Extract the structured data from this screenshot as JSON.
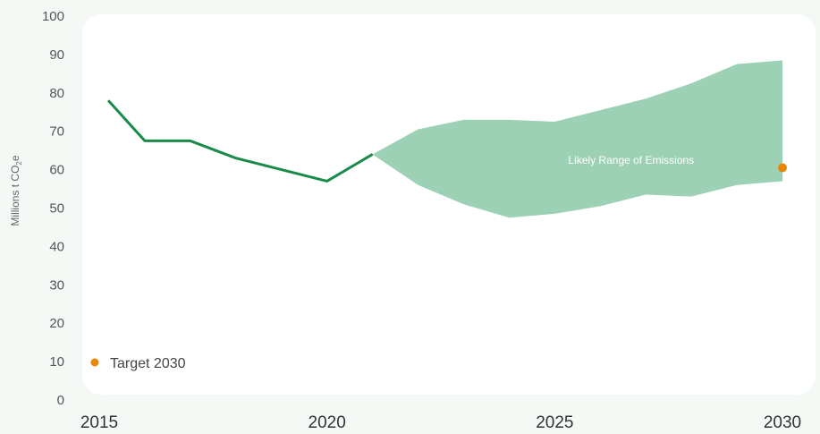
{
  "chart_data": {
    "type": "line",
    "ylabel": "Millions t CO",
    "ylabel_subscript": "2",
    "ylabel_suffix": "e",
    "ylim": [
      0,
      100
    ],
    "yticks": [
      0,
      10,
      20,
      30,
      40,
      50,
      60,
      70,
      80,
      90,
      100
    ],
    "xlim": [
      2015,
      2030
    ],
    "xticks": [
      2015,
      2020,
      2025,
      2030
    ],
    "grid": false,
    "series": [
      {
        "type": "line",
        "color": "#1a8a4a",
        "x": [
          2015.2,
          2016,
          2017,
          2018,
          2019,
          2020,
          2021
        ],
        "y": [
          78,
          67.5,
          67.5,
          63,
          60,
          57,
          64
        ]
      }
    ],
    "range_band": {
      "label": "Likely Range of Emissions",
      "color": "#9dd1b5",
      "x": [
        2021,
        2022,
        2023,
        2024,
        2025,
        2026,
        2027,
        2028,
        2029,
        2030
      ],
      "upper": [
        64,
        70.5,
        73,
        73,
        72.5,
        75.5,
        78.5,
        82.5,
        87.5,
        88.5
      ],
      "lower": [
        64,
        56,
        51,
        47.5,
        48.5,
        50.5,
        53.5,
        53,
        56,
        57
      ]
    },
    "target": {
      "label": "Target 2030",
      "color": "#e8860c",
      "x": 2030,
      "y": 60.5
    },
    "legend_placement": "bottom-left"
  }
}
